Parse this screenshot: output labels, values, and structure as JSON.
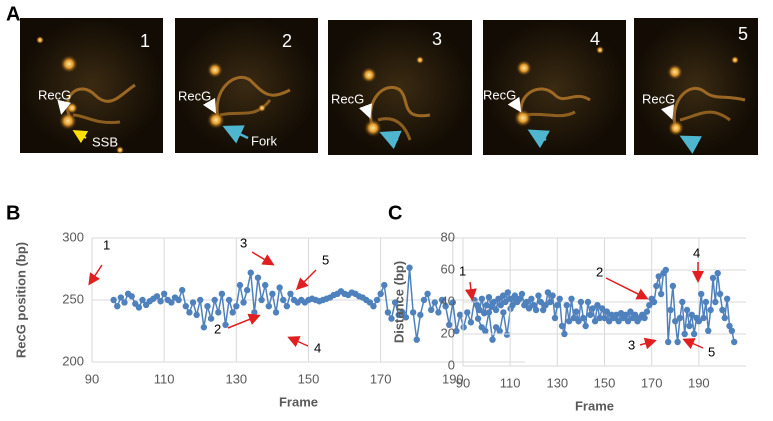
{
  "figure": {
    "panel_labels": [
      "A",
      "B",
      "C"
    ],
    "images": [
      {
        "number": "1",
        "labels": [
          "RecG",
          "SSB"
        ]
      },
      {
        "number": "2",
        "labels": [
          "RecG",
          "Fork"
        ]
      },
      {
        "number": "3",
        "labels": [
          "RecG"
        ]
      },
      {
        "number": "4",
        "labels": [
          "RecG"
        ]
      },
      {
        "number": "5",
        "labels": [
          "RecG"
        ]
      }
    ]
  },
  "chart_data": [
    {
      "type": "line",
      "x_label": "Frame",
      "y_label": "RecG position (bp)",
      "color": "#4f81bd",
      "grid": true,
      "xlim": [
        90,
        210
      ],
      "xticks": [
        90,
        110,
        130,
        150,
        170,
        190
      ],
      "ylim": [
        200,
        300
      ],
      "yticks": [
        200,
        250,
        300
      ],
      "annotations": [
        "1",
        "2",
        "3",
        "4",
        "5"
      ],
      "x": [
        96,
        97,
        98,
        99,
        100,
        101,
        102,
        103,
        104,
        105,
        106,
        107,
        108,
        109,
        110,
        111,
        112,
        113,
        114,
        115,
        116,
        117,
        118,
        119,
        120,
        121,
        122,
        123,
        124,
        125,
        126,
        127,
        128,
        129,
        130,
        131,
        132,
        133,
        134,
        135,
        136,
        137,
        138,
        139,
        140,
        141,
        142,
        143,
        144,
        145,
        146,
        147,
        148,
        149,
        150,
        151,
        152,
        153,
        154,
        155,
        156,
        157,
        158,
        159,
        160,
        161,
        162,
        163,
        164,
        165,
        166,
        167,
        168,
        169,
        170,
        171,
        172,
        173,
        174,
        175,
        176,
        177,
        178,
        179,
        180,
        181,
        182,
        183,
        184,
        185,
        186,
        187,
        188,
        189,
        190,
        191,
        192,
        193,
        194,
        195,
        196,
        197,
        198,
        199,
        200,
        201,
        202,
        203,
        204,
        205,
        206,
        207
      ],
      "values": [
        250,
        245,
        252,
        248,
        255,
        253,
        247,
        244,
        250,
        246,
        249,
        251,
        253,
        249,
        255,
        250,
        248,
        252,
        250,
        258,
        245,
        240,
        248,
        238,
        250,
        228,
        245,
        235,
        250,
        240,
        255,
        230,
        250,
        240,
        245,
        262,
        248,
        258,
        272,
        240,
        268,
        250,
        262,
        245,
        255,
        240,
        260,
        250,
        245,
        255,
        250,
        248,
        250,
        248,
        250,
        251,
        250,
        249,
        250,
        251,
        252,
        254,
        255,
        257,
        255,
        254,
        256,
        255,
        253,
        252,
        250,
        248,
        245,
        250,
        255,
        262,
        240,
        235,
        248,
        238,
        240,
        236,
        276,
        240,
        218,
        238,
        250,
        255,
        242,
        248,
        240,
        250,
        245,
        230,
        248,
        225,
        238,
        228,
        240,
        232,
        250,
        235,
        228,
        225,
        240,
        218,
        228,
        225,
        240,
        222,
        243,
        252
      ]
    },
    {
      "type": "line",
      "x_label": "Frame",
      "y_label": "Distance (bp)",
      "color": "#4f81bd",
      "grid": true,
      "xlim": [
        90,
        210
      ],
      "xticks": [
        90,
        110,
        130,
        150,
        170,
        190
      ],
      "ylim": [
        0,
        80
      ],
      "yticks": [
        0,
        20,
        40,
        60,
        80
      ],
      "annotations": [
        "1",
        "2",
        "3",
        "4",
        "5"
      ],
      "x": [
        96,
        97,
        98,
        99,
        100,
        101,
        102,
        103,
        104,
        105,
        106,
        107,
        108,
        109,
        110,
        111,
        112,
        113,
        114,
        115,
        116,
        117,
        118,
        119,
        120,
        121,
        122,
        123,
        124,
        125,
        126,
        127,
        128,
        129,
        130,
        131,
        132,
        133,
        134,
        135,
        136,
        137,
        138,
        139,
        140,
        141,
        142,
        143,
        144,
        145,
        146,
        147,
        148,
        149,
        150,
        151,
        152,
        153,
        154,
        155,
        156,
        157,
        158,
        159,
        160,
        161,
        162,
        163,
        164,
        165,
        166,
        167,
        168,
        169,
        170,
        171,
        172,
        173,
        174,
        175,
        176,
        177,
        178,
        179,
        180,
        181,
        182,
        183,
        184,
        185,
        186,
        187,
        188,
        189,
        190,
        191,
        192,
        193,
        194,
        195,
        196,
        197,
        198,
        199,
        200,
        201,
        202,
        203,
        204,
        205
      ],
      "values": [
        38,
        35,
        42,
        33,
        38,
        43,
        37,
        40,
        35,
        42,
        38,
        44,
        40,
        46,
        42,
        38,
        44,
        40,
        42,
        45,
        38,
        40,
        36,
        42,
        38,
        35,
        44,
        40,
        35,
        38,
        46,
        40,
        44,
        30,
        38,
        42,
        25,
        20,
        38,
        28,
        42,
        30,
        34,
        28,
        40,
        30,
        25,
        40,
        32,
        36,
        28,
        38,
        30,
        36,
        30,
        34,
        28,
        32,
        30,
        32,
        28,
        33,
        30,
        32,
        28,
        34,
        30,
        32,
        28,
        30,
        32,
        30,
        34,
        38,
        42,
        40,
        50,
        56,
        45,
        58,
        60,
        15,
        35,
        50,
        28,
        15,
        30,
        40,
        20,
        35,
        25,
        32,
        20,
        30,
        28,
        45,
        30,
        40,
        22,
        35,
        55,
        40,
        58,
        45,
        35,
        30,
        42,
        25,
        22,
        15
      ]
    }
  ]
}
